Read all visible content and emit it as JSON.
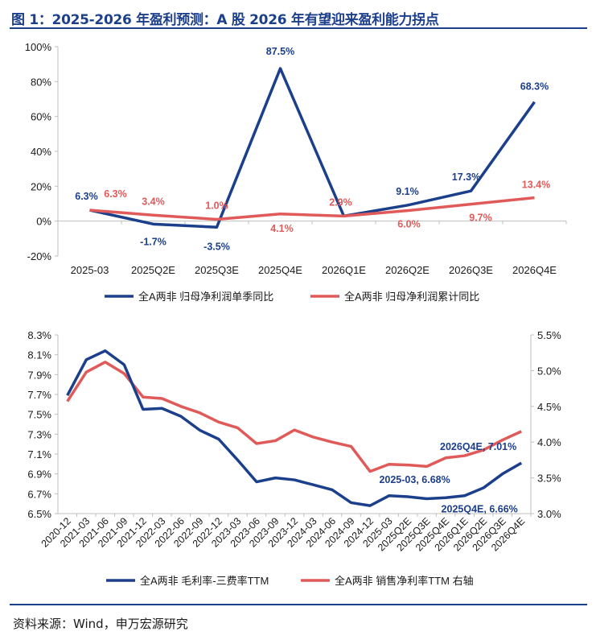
{
  "figure_title": "图 1：2025-2026 年盈利预测：A 股 2026 年有望迎来盈利能力拐点",
  "source": "资料来源：Wind，申万宏源研究",
  "colors": {
    "navy": "#1c3f8c",
    "salmon": "#e05a5a",
    "axis": "#bfbfbf"
  },
  "chart_data": [
    {
      "type": "line",
      "title": "",
      "xlabel": "",
      "ylabel": "",
      "categories": [
        "2025-03",
        "2025Q2E",
        "2025Q3E",
        "2025Q4E",
        "2026Q1E",
        "2026Q2E",
        "2026Q3E",
        "2026Q4E"
      ],
      "y_ticks": [
        "100%",
        "80%",
        "60%",
        "40%",
        "20%",
        "0%",
        "-20%"
      ],
      "ylim": [
        -20,
        100
      ],
      "grid": false,
      "legend_position": "bottom",
      "series": [
        {
          "name": "全A两非 归母净利润单季同比",
          "color": "#1c3f8c",
          "values": [
            6.3,
            -1.7,
            -3.5,
            87.5,
            2.9,
            9.1,
            17.3,
            68.3
          ],
          "labels": [
            "6.3%",
            "-1.7%",
            "-3.5%",
            "87.5%",
            "",
            "9.1%",
            "17.3%",
            "68.3%"
          ]
        },
        {
          "name": "全A两非 归母净利润累计同比",
          "color": "#e05a5a",
          "values": [
            6.3,
            3.4,
            1.0,
            4.1,
            2.9,
            6.0,
            9.7,
            13.4
          ],
          "labels": [
            "6.3%",
            "3.4%",
            "1.0%",
            "4.1%",
            "2.9%",
            "6.0%",
            "9.7%",
            "13.4%"
          ]
        }
      ]
    },
    {
      "type": "line",
      "title": "",
      "xlabel": "",
      "ylabel": "",
      "categories": [
        "2020-12",
        "2021-03",
        "2021-06",
        "2021-09",
        "2021-12",
        "2022-03",
        "2022-06",
        "2022-09",
        "2022-12",
        "2023-03",
        "2023-06",
        "2023-09",
        "2023-12",
        "2024-03",
        "2024-06",
        "2024-09",
        "2024-12",
        "2025-03",
        "2025Q2E",
        "2025Q3E",
        "2025Q4E",
        "2026Q1E",
        "2026Q2E",
        "2026Q3E",
        "2026Q4E"
      ],
      "y_ticks_left": [
        "8.3%",
        "8.1%",
        "7.9%",
        "7.7%",
        "7.5%",
        "7.3%",
        "7.1%",
        "6.9%",
        "6.7%",
        "6.5%"
      ],
      "y_ticks_right": [
        "5.5%",
        "5.0%",
        "4.5%",
        "4.0%",
        "3.5%",
        "3.0%"
      ],
      "ylim_left": [
        6.5,
        8.3
      ],
      "ylim_right": [
        3.0,
        5.5
      ],
      "grid": false,
      "legend_position": "bottom",
      "series": [
        {
          "name": "全A两非 毛利率-三费率TTM",
          "axis": "left",
          "color": "#1c3f8c",
          "values": [
            7.69,
            8.05,
            8.14,
            8.0,
            7.55,
            7.56,
            7.48,
            7.34,
            7.25,
            7.04,
            6.82,
            6.86,
            6.84,
            6.79,
            6.74,
            6.61,
            6.58,
            6.68,
            6.67,
            6.65,
            6.66,
            6.68,
            6.76,
            6.9,
            7.01
          ]
        },
        {
          "name": "全A两非 销售净利率TTM 右轴",
          "axis": "right",
          "color": "#e05a5a",
          "values": [
            4.57,
            4.98,
            5.12,
            4.96,
            4.63,
            4.61,
            4.5,
            4.41,
            4.28,
            4.2,
            3.98,
            4.02,
            4.17,
            4.07,
            4.0,
            3.94,
            3.59,
            3.69,
            3.68,
            3.66,
            3.78,
            3.81,
            3.89,
            4.03,
            4.15
          ]
        }
      ],
      "annotations": [
        "2025-03, 6.68%",
        "2025Q4E, 6.66%",
        "2026Q4E, 7.01%"
      ]
    }
  ]
}
